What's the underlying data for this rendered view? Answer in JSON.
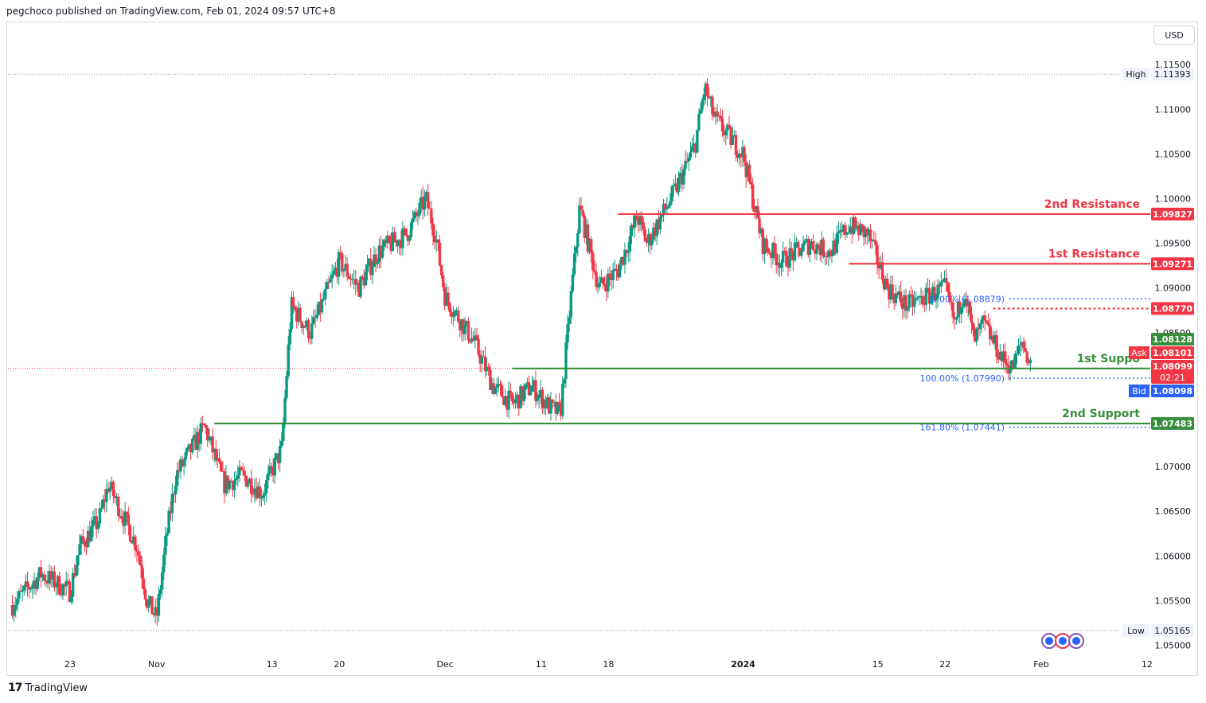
{
  "header": {
    "attribution": "pegchoco published on TradingView.com, Feb 01, 2024 09:57 UTC+8"
  },
  "footer": {
    "brand": "TradingView"
  },
  "currency_button": "USD",
  "colors": {
    "up": "#089981",
    "down": "#f23645",
    "resistance": "#f23645",
    "support": "#388e3c",
    "fib": "#2962ff",
    "bid": "#2962ff",
    "grid_text": "#131722"
  },
  "chart_data": {
    "type": "candlestick",
    "symbol_currency": "USD",
    "ylim": [
      1.0496,
      1.116
    ],
    "y_ticks": [
      "1.11500",
      "1.11000",
      "1.10500",
      "1.10000",
      "1.09500",
      "1.09000",
      "1.08500",
      "1.08000",
      "1.07500",
      "1.07000",
      "1.06500",
      "1.06000",
      "1.05500",
      "1.05000"
    ],
    "y_tick_values": [
      1.115,
      1.11,
      1.105,
      1.1,
      1.095,
      1.09,
      1.085,
      1.08,
      1.075,
      1.07,
      1.065,
      1.06,
      1.055,
      1.05
    ],
    "x_labels": [
      {
        "label": "23",
        "date": "2023-10-23"
      },
      {
        "label": "Nov",
        "date": "2023-11-01"
      },
      {
        "label": "13",
        "date": "2023-11-13"
      },
      {
        "label": "20",
        "date": "2023-11-20"
      },
      {
        "label": "Dec",
        "date": "2023-12-01"
      },
      {
        "label": "11",
        "date": "2023-12-11"
      },
      {
        "label": "18",
        "date": "2023-12-18"
      },
      {
        "label": "2024",
        "date": "2024-01-01"
      },
      {
        "label": "15",
        "date": "2024-01-15"
      },
      {
        "label": "22",
        "date": "2024-01-22"
      },
      {
        "label": "Feb",
        "date": "2024-02-01"
      },
      {
        "label": "12",
        "date": "2024-02-12"
      }
    ],
    "price_path": [
      [
        "2023-10-17",
        1.0545
      ],
      [
        "2023-10-20",
        1.058
      ],
      [
        "2023-10-23",
        1.056
      ],
      [
        "2023-10-24",
        1.061
      ],
      [
        "2023-10-26",
        1.064
      ],
      [
        "2023-10-27",
        1.068
      ],
      [
        "2023-10-30",
        1.061
      ],
      [
        "2023-10-31",
        1.055
      ],
      [
        "2023-11-01",
        1.053
      ],
      [
        "2023-11-02",
        1.062
      ],
      [
        "2023-11-03",
        1.069
      ],
      [
        "2023-11-06",
        1.0745
      ],
      [
        "2023-11-08",
        1.068
      ],
      [
        "2023-11-10",
        1.069
      ],
      [
        "2023-11-12",
        1.067
      ],
      [
        "2023-11-14",
        1.072
      ],
      [
        "2023-11-15",
        1.088
      ],
      [
        "2023-11-17",
        1.085
      ],
      [
        "2023-11-20",
        1.093
      ],
      [
        "2023-11-22",
        1.09
      ],
      [
        "2023-11-24",
        1.094
      ],
      [
        "2023-11-27",
        1.096
      ],
      [
        "2023-11-29",
        1.1
      ],
      [
        "2023-11-30",
        1.096
      ],
      [
        "2023-12-01",
        1.089
      ],
      [
        "2023-12-04",
        1.084
      ],
      [
        "2023-12-06",
        1.079
      ],
      [
        "2023-12-08",
        1.077
      ],
      [
        "2023-12-10",
        1.079
      ],
      [
        "2023-12-12",
        1.0765
      ],
      [
        "2023-12-13",
        1.076
      ],
      [
        "2023-12-14",
        1.088
      ],
      [
        "2023-12-15",
        1.099
      ],
      [
        "2023-12-17",
        1.09
      ],
      [
        "2023-12-19",
        1.092
      ],
      [
        "2023-12-21",
        1.098
      ],
      [
        "2023-12-22",
        1.095
      ],
      [
        "2023-12-25",
        1.101
      ],
      [
        "2023-12-27",
        1.106
      ],
      [
        "2023-12-28",
        1.1125
      ],
      [
        "2023-12-29",
        1.109
      ],
      [
        "2024-01-01",
        1.105
      ],
      [
        "2024-01-03",
        1.095
      ],
      [
        "2024-01-05",
        1.093
      ],
      [
        "2024-01-08",
        1.095
      ],
      [
        "2024-01-10",
        1.094
      ],
      [
        "2024-01-12",
        1.097
      ],
      [
        "2024-01-14",
        1.096
      ],
      [
        "2024-01-16",
        1.09
      ],
      [
        "2024-01-18",
        1.088
      ],
      [
        "2024-01-20",
        1.089
      ],
      [
        "2024-01-22",
        1.09
      ],
      [
        "2024-01-23",
        1.086
      ],
      [
        "2024-01-24",
        1.09
      ],
      [
        "2024-01-25",
        1.084
      ],
      [
        "2024-01-26",
        1.086
      ],
      [
        "2024-01-28",
        1.082
      ],
      [
        "2024-01-29",
        1.081
      ],
      [
        "2024-01-30",
        1.084
      ],
      [
        "2024-01-31",
        1.081
      ]
    ],
    "last_session_close_date": "2024-02-01",
    "high": {
      "label": "High",
      "value": "1.11393"
    },
    "low": {
      "label": "Low",
      "value": "1.05165"
    },
    "levels": [
      {
        "name": "2nd Resistance",
        "price": 1.09827,
        "label": "1.09827",
        "kind": "resistance",
        "start": "2023-12-19"
      },
      {
        "name": "1st Resistance",
        "price": 1.09271,
        "label": "1.09271",
        "kind": "resistance",
        "start": "2024-01-12"
      },
      {
        "name": "1st Suppo",
        "price": 1.08099,
        "label": "1.08099",
        "kind": "support",
        "start": "2023-12-08"
      },
      {
        "name": "2nd Support",
        "price": 1.07483,
        "label": "1.07483",
        "kind": "support",
        "start": "2023-11-07"
      }
    ],
    "intermediate_level": {
      "price": 1.0877,
      "label": "1.08770",
      "start": "2024-01-27"
    },
    "fibonacci": [
      {
        "text": "0.00% (1.08879)",
        "price": 1.08879
      },
      {
        "text": "100.00% (1.07990)",
        "price": 1.0799
      },
      {
        "text": "161.80% (1.07441)",
        "price": 1.07441
      }
    ],
    "price_tags": {
      "upper": "1.08128",
      "ask": {
        "label": "Ask",
        "value": "1.08101"
      },
      "last": "1.08099",
      "countdown": "02:21",
      "bid": {
        "label": "Bid",
        "value": "1.08098"
      }
    }
  }
}
